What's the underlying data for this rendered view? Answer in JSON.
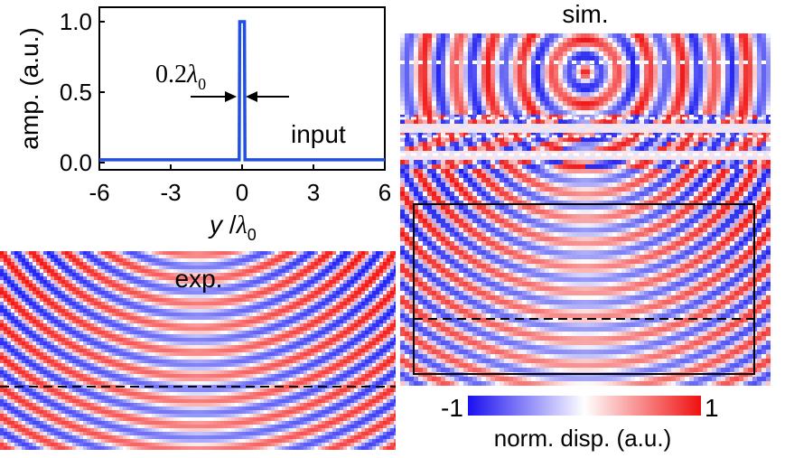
{
  "chart_data": [
    {
      "type": "line",
      "title": "",
      "xlabel": "y /λ0",
      "ylabel": "amp. (a.u.)",
      "xlim": [
        -6,
        6
      ],
      "ylim": [
        0,
        1
      ],
      "xticks": [
        -6,
        -3,
        0,
        3,
        6
      ],
      "yticks": [
        0.0,
        0.5,
        1.0
      ],
      "x_tick_labels": [
        "-6",
        "-3",
        "0",
        "3",
        "6"
      ],
      "y_tick_labels": [
        "0.0",
        "0.5",
        "1.0"
      ],
      "series": [
        {
          "name": "input",
          "color": "#1f4fe6",
          "x": [
            -6,
            -0.12,
            -0.1,
            0.1,
            0.12,
            6
          ],
          "y": [
            0.02,
            0.02,
            1.0,
            1.0,
            0.02,
            0.02
          ]
        }
      ],
      "annotations": {
        "width_label": "0.2λ0",
        "width_prefix": "0.2",
        "lambda_symbol": "λ",
        "lambda_subscript": "0",
        "series_label": "input"
      }
    },
    {
      "type": "heatmap",
      "title": "exp.",
      "description_field": "experimental displacement field"
    },
    {
      "type": "heatmap",
      "title": "sim.",
      "description_field": "simulated displacement field"
    },
    {
      "type": "heatmap",
      "colorbar": {
        "min": -1,
        "max": 1,
        "min_label": "-1",
        "max_label": "1",
        "label": "norm. disp. (a.u.)",
        "colors": [
          "#1a10f0",
          "#ffffff",
          "#f01010"
        ]
      }
    }
  ],
  "labels": {
    "xlabel_italic": "y",
    "xlabel_rest": " /",
    "exp_title": "exp.",
    "sim_title": "sim."
  }
}
